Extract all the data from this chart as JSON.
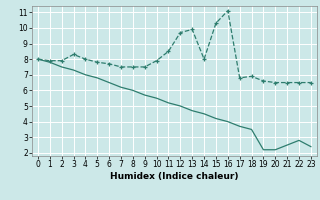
{
  "xlabel": "Humidex (Indice chaleur)",
  "bg_color": "#cce8e8",
  "line_color": "#2e7d6e",
  "grid_color": "#ffffff",
  "xlim": [
    -0.5,
    23.5
  ],
  "ylim": [
    1.8,
    11.4
  ],
  "yticks": [
    2,
    3,
    4,
    5,
    6,
    7,
    8,
    9,
    10,
    11
  ],
  "xticks": [
    0,
    1,
    2,
    3,
    4,
    5,
    6,
    7,
    8,
    9,
    10,
    11,
    12,
    13,
    14,
    15,
    16,
    17,
    18,
    19,
    20,
    21,
    22,
    23
  ],
  "line1_x": [
    0,
    1,
    2,
    3,
    4,
    5,
    6,
    7,
    8,
    9,
    10,
    11,
    12,
    13,
    14,
    15,
    16,
    17,
    18,
    19,
    20,
    21,
    22,
    23
  ],
  "line1_y": [
    8.0,
    7.9,
    7.9,
    8.3,
    8.0,
    7.8,
    7.7,
    7.5,
    7.5,
    7.5,
    7.9,
    8.5,
    9.7,
    9.9,
    8.0,
    10.3,
    11.1,
    6.8,
    6.9,
    6.6,
    6.5,
    6.5,
    6.5,
    6.5
  ],
  "line2_x": [
    0,
    1,
    2,
    3,
    4,
    5,
    6,
    7,
    8,
    9,
    10,
    11,
    12,
    13,
    14,
    15,
    16,
    17,
    18,
    19,
    20,
    21,
    22,
    23
  ],
  "line2_y": [
    8.0,
    7.8,
    7.5,
    7.3,
    7.0,
    6.8,
    6.5,
    6.2,
    6.0,
    5.7,
    5.5,
    5.2,
    5.0,
    4.7,
    4.5,
    4.2,
    4.0,
    3.7,
    3.5,
    2.2,
    2.2,
    2.5,
    2.8,
    2.4
  ],
  "tick_fontsize": 5.5,
  "xlabel_fontsize": 6.5,
  "xlabel_fontweight": "bold"
}
